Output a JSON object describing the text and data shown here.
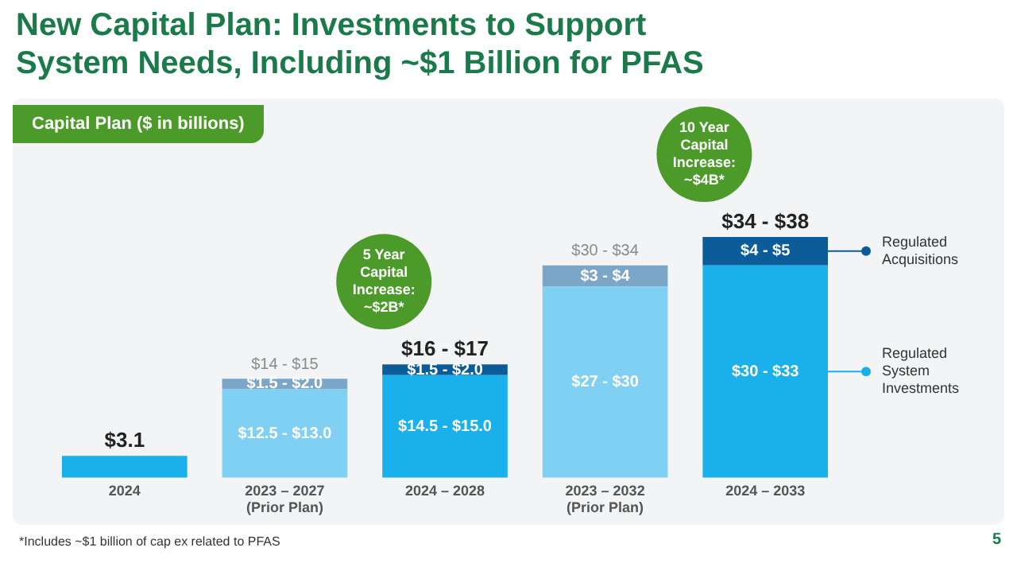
{
  "chart_data": {
    "type": "bar",
    "stacked": true,
    "title": "New Capital Plan: Investments to Support System Needs, Including ~$1 Billion for PFAS",
    "subtitle": "Capital Plan ($ in billions)",
    "categories": [
      "2024",
      "2023 – 2027\n(Prior Plan)",
      "2024 – 2028",
      "2023 – 2032\n(Prior Plan)",
      "2024 – 2033"
    ],
    "series": [
      {
        "name": "Regulated System Investments",
        "color": "#1ab0ec",
        "colors": [
          "#1ab0ec",
          "#7fd0f2",
          "#1ab0ec",
          "#7fd0f2",
          "#1ab0ec"
        ],
        "values": [
          3.1,
          12.5,
          14.5,
          27,
          30
        ],
        "value_labels": [
          null,
          "$12.5 - $13.0",
          "$14.5 - $15.0",
          "$27 - $30",
          "$30 - $33"
        ]
      },
      {
        "name": "Regulated Acquisitions",
        "color": "#0b5c99",
        "colors": [
          "#0b5c99",
          "#7ba6c8",
          "#0b5c99",
          "#7ba6c8",
          "#0b5c99"
        ],
        "values": [
          null,
          1.5,
          1.5,
          3,
          4
        ],
        "value_labels": [
          null,
          "$1.5 - $2.0",
          "$1.5 - $2.0",
          "$3 - $4",
          "$4 - $5"
        ]
      }
    ],
    "totals": [
      "$3.1",
      "$14 - $15",
      "$16 - $17",
      "$30 - $34",
      "$34 - $38"
    ],
    "annotations": [
      "5 Year Capital Increase: ~$2B*",
      "10 Year Capital Increase: ~$4B*",
      "*Includes ~$1 billion of cap ex related to PFAS",
      "5"
    ],
    "legend": "right",
    "grid": false
  }
}
